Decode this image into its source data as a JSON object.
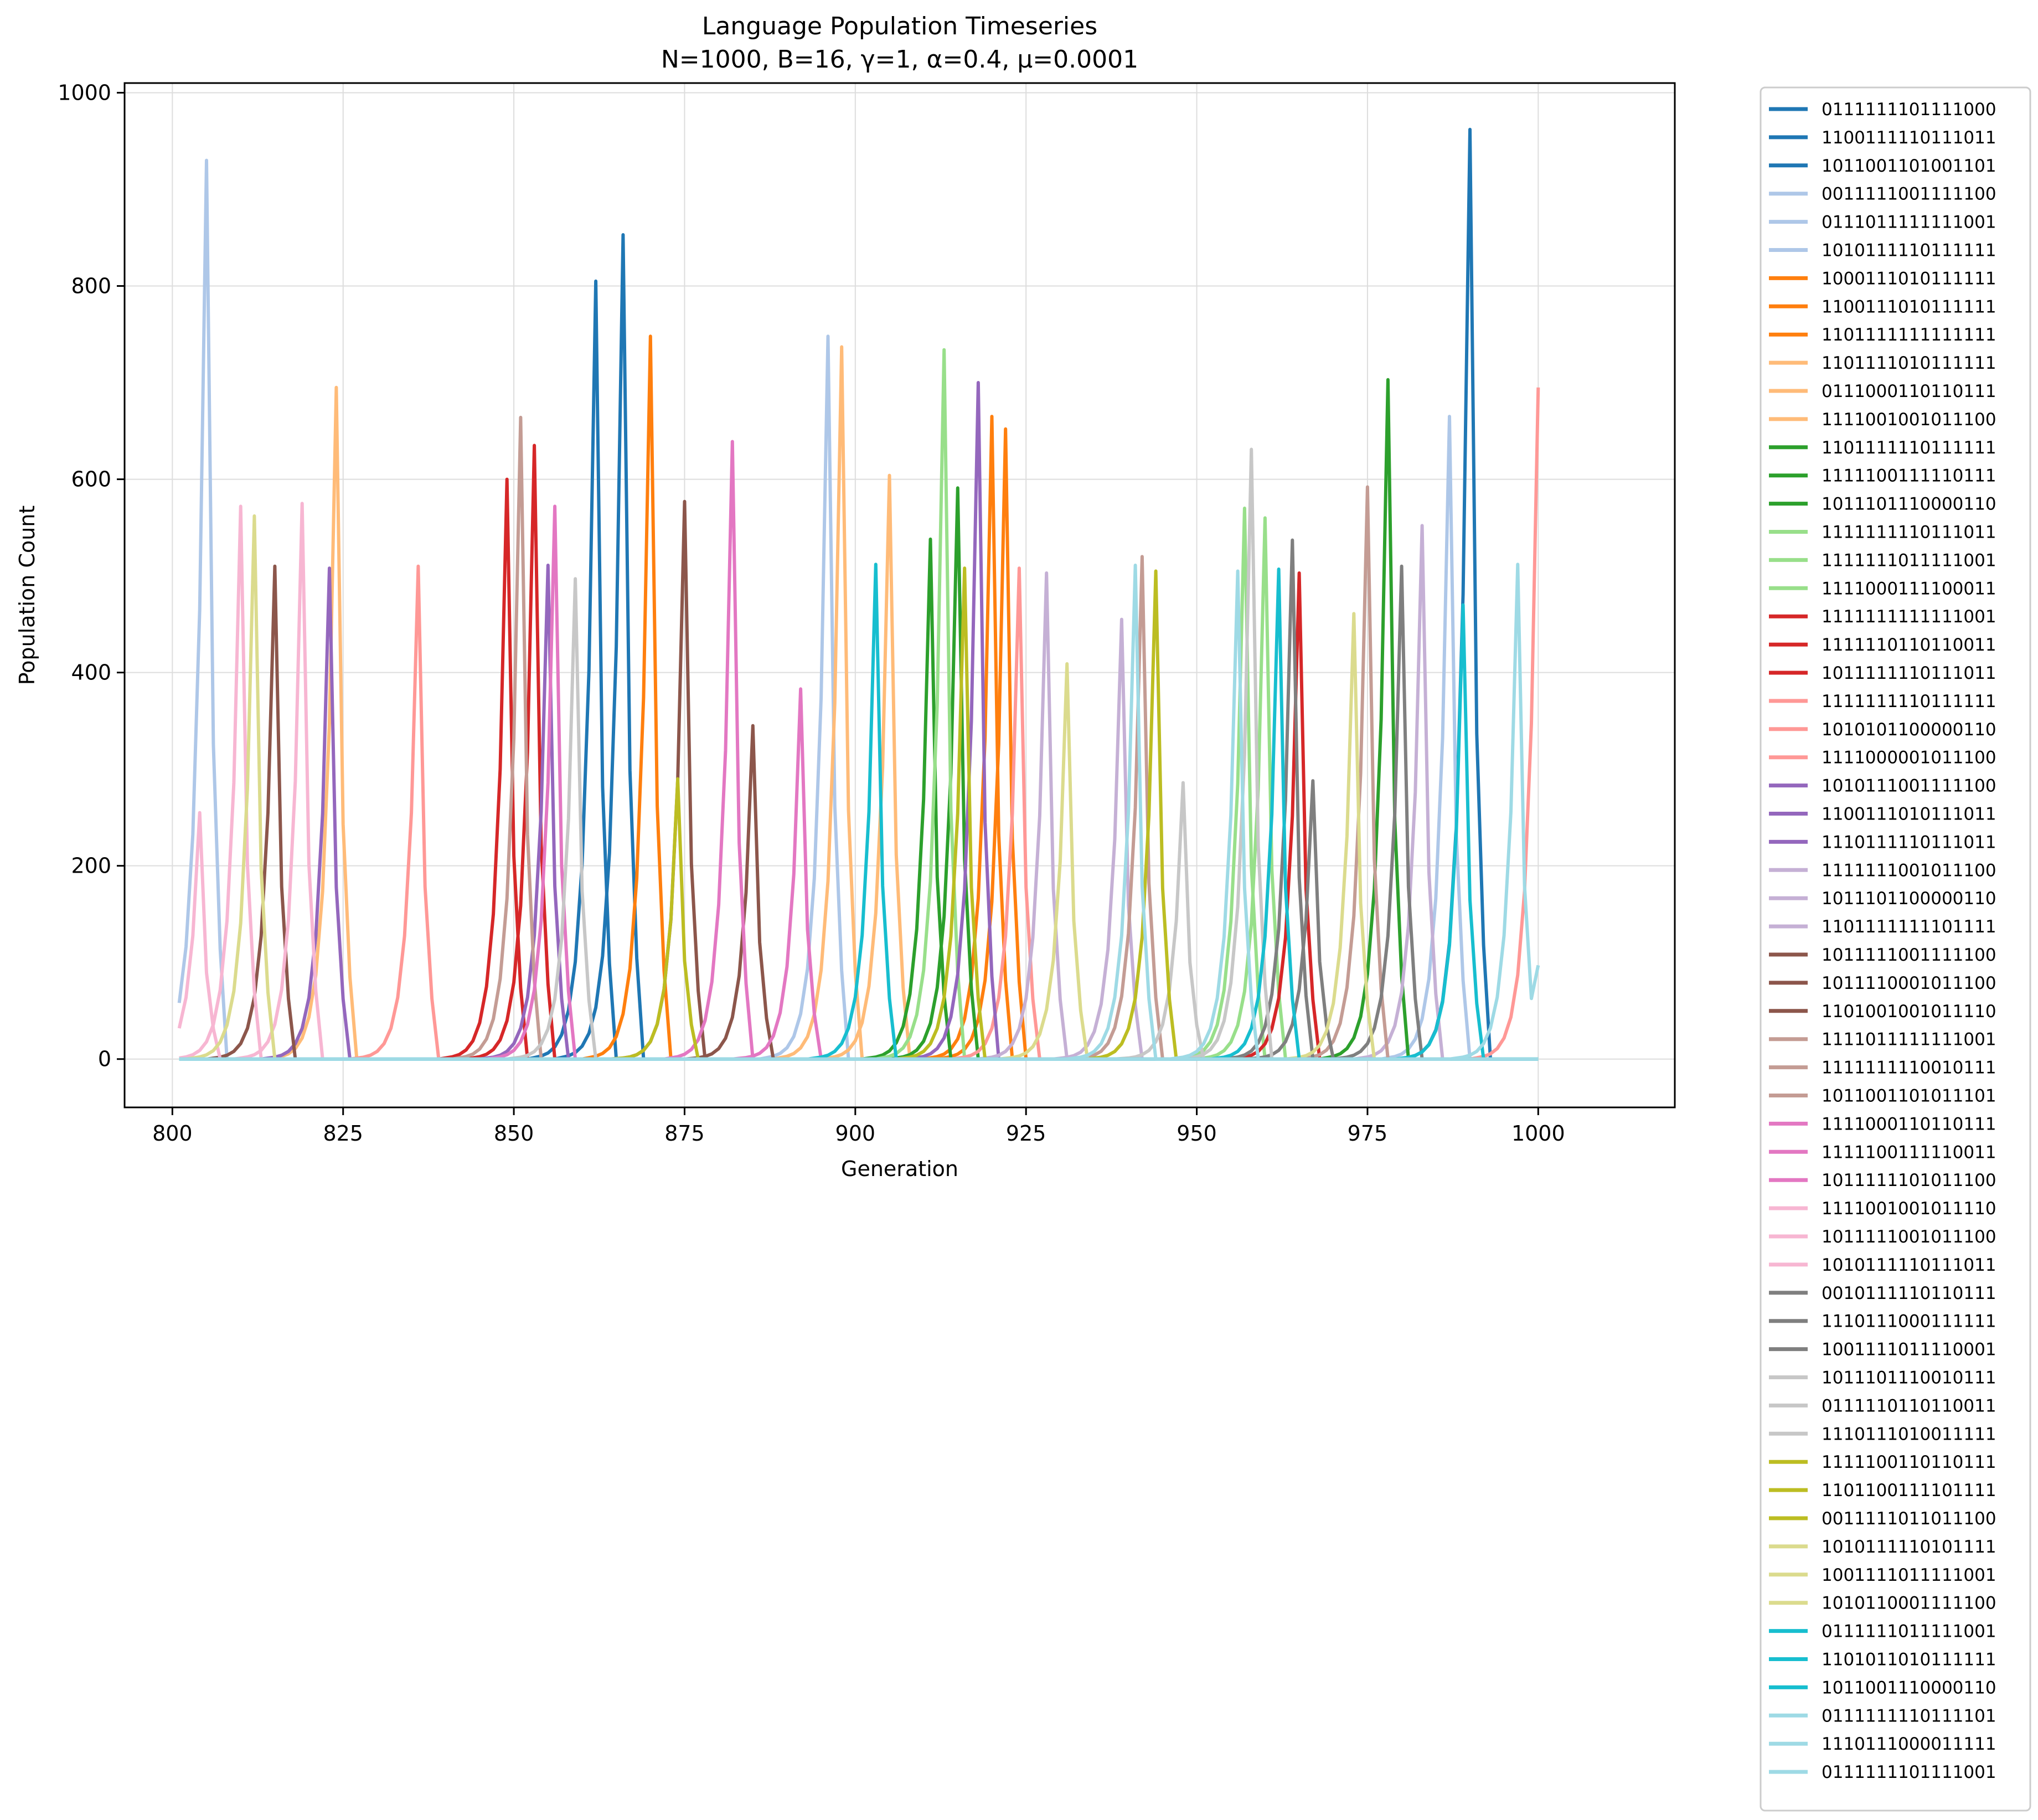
{
  "chart_data": {
    "type": "line",
    "title": "Language Population Timeseries",
    "subtitle": "N=1000, B=16, γ=1, α=0.4, μ=0.0001",
    "xlabel": "Generation",
    "ylabel": "Population Count",
    "xlim": [
      793,
      1020
    ],
    "ylim": [
      -50,
      1010
    ],
    "xticks": [
      800,
      825,
      850,
      875,
      900,
      925,
      950,
      975,
      1000
    ],
    "yticks": [
      0,
      200,
      400,
      600,
      800,
      1000
    ],
    "grid": true,
    "legend_position": "outside-right",
    "series": [
      {
        "name": "0111111101111000",
        "color": "#1f77b4",
        "peaks": [
          [
            990,
            962
          ]
        ]
      },
      {
        "name": "1100111110111011",
        "color": "#1f77b4",
        "peaks": [
          [
            862,
            805
          ]
        ]
      },
      {
        "name": "1011001101001101",
        "color": "#1f77b4",
        "peaks": [
          [
            866,
            853
          ]
        ]
      },
      {
        "name": "0011111001111100",
        "color": "#aec7e8",
        "peaks": [
          [
            805,
            930
          ]
        ]
      },
      {
        "name": "0111011111111001",
        "color": "#aec7e8",
        "peaks": [
          [
            896,
            748
          ]
        ]
      },
      {
        "name": "1010111110111111",
        "color": "#aec7e8",
        "peaks": [
          [
            987,
            665
          ]
        ]
      },
      {
        "name": "1000111010111111",
        "color": "#ff7f0e",
        "peaks": [
          [
            870,
            748
          ]
        ]
      },
      {
        "name": "1100111010111111",
        "color": "#ff7f0e",
        "peaks": [
          [
            920,
            665
          ]
        ]
      },
      {
        "name": "1101111111111111",
        "color": "#ff7f0e",
        "peaks": [
          [
            922,
            652
          ]
        ]
      },
      {
        "name": "1101111010111111",
        "color": "#ffbb78",
        "peaks": [
          [
            898,
            737
          ]
        ]
      },
      {
        "name": "0111000110110111",
        "color": "#ffbb78",
        "peaks": [
          [
            824,
            695
          ]
        ]
      },
      {
        "name": "1111001001011100",
        "color": "#ffbb78",
        "peaks": [
          [
            905,
            604
          ]
        ]
      },
      {
        "name": "1101111110111111",
        "color": "#2ca02c",
        "peaks": [
          [
            978,
            703
          ]
        ]
      },
      {
        "name": "1111100111110111",
        "color": "#2ca02c",
        "peaks": [
          [
            915,
            591
          ]
        ]
      },
      {
        "name": "1011101110000110",
        "color": "#2ca02c",
        "peaks": [
          [
            911,
            538
          ]
        ]
      },
      {
        "name": "1111111110111011",
        "color": "#98df8a",
        "peaks": [
          [
            913,
            734
          ]
        ]
      },
      {
        "name": "1111111011111001",
        "color": "#98df8a",
        "peaks": [
          [
            960,
            560
          ]
        ]
      },
      {
        "name": "1111000111100011",
        "color": "#98df8a",
        "peaks": [
          [
            957,
            570
          ]
        ]
      },
      {
        "name": "1111111111111001",
        "color": "#d62728",
        "peaks": [
          [
            853,
            635
          ]
        ]
      },
      {
        "name": "1111110110110011",
        "color": "#d62728",
        "peaks": [
          [
            849,
            600
          ]
        ]
      },
      {
        "name": "1011111110111011",
        "color": "#d62728",
        "peaks": [
          [
            965,
            503
          ]
        ]
      },
      {
        "name": "1111111110111111",
        "color": "#ff9896",
        "peaks": [
          [
            1000,
            695
          ]
        ]
      },
      {
        "name": "1010101100000110",
        "color": "#ff9896",
        "peaks": [
          [
            924,
            508
          ]
        ]
      },
      {
        "name": "1111000001011100",
        "color": "#ff9896",
        "peaks": [
          [
            836,
            510
          ]
        ]
      },
      {
        "name": "1010111001111100",
        "color": "#9467bd",
        "peaks": [
          [
            918,
            700
          ]
        ]
      },
      {
        "name": "1100111010111011",
        "color": "#9467bd",
        "peaks": [
          [
            855,
            511
          ]
        ]
      },
      {
        "name": "1110111110111011",
        "color": "#9467bd",
        "peaks": [
          [
            823,
            508
          ]
        ]
      },
      {
        "name": "1111111001011100",
        "color": "#c5b0d5",
        "peaks": [
          [
            939,
            455
          ]
        ]
      },
      {
        "name": "1011101100000110",
        "color": "#c5b0d5",
        "peaks": [
          [
            928,
            503
          ]
        ]
      },
      {
        "name": "1101111111101111",
        "color": "#c5b0d5",
        "peaks": [
          [
            983,
            552
          ]
        ]
      },
      {
        "name": "1011111001111100",
        "color": "#8c564b",
        "peaks": [
          [
            875,
            577
          ]
        ]
      },
      {
        "name": "1011110001011100",
        "color": "#8c564b",
        "peaks": [
          [
            815,
            510
          ]
        ]
      },
      {
        "name": "1101001001011110",
        "color": "#8c564b",
        "peaks": [
          [
            885,
            345
          ]
        ]
      },
      {
        "name": "1111011111111001",
        "color": "#c49c94",
        "peaks": [
          [
            851,
            664
          ]
        ]
      },
      {
        "name": "1111111110010111",
        "color": "#c49c94",
        "peaks": [
          [
            975,
            592
          ]
        ]
      },
      {
        "name": "1011001101011101",
        "color": "#c49c94",
        "peaks": [
          [
            942,
            520
          ]
        ]
      },
      {
        "name": "1111000110110111",
        "color": "#e377c2",
        "peaks": [
          [
            882,
            639
          ]
        ]
      },
      {
        "name": "1111100111110011",
        "color": "#e377c2",
        "peaks": [
          [
            856,
            572
          ]
        ]
      },
      {
        "name": "1011111101011100",
        "color": "#e377c2",
        "peaks": [
          [
            892,
            383
          ]
        ]
      },
      {
        "name": "1111001001011110",
        "color": "#f7b6d2",
        "peaks": [
          [
            819,
            575
          ]
        ]
      },
      {
        "name": "1011111001011100",
        "color": "#f7b6d2",
        "peaks": [
          [
            810,
            572
          ]
        ]
      },
      {
        "name": "1010111110111011",
        "color": "#f7b6d2",
        "peaks": [
          [
            804,
            255
          ]
        ]
      },
      {
        "name": "0010111110110111",
        "color": "#7f7f7f",
        "peaks": [
          [
            964,
            537
          ]
        ]
      },
      {
        "name": "1110111000111111",
        "color": "#7f7f7f",
        "peaks": [
          [
            980,
            510
          ]
        ]
      },
      {
        "name": "1001111011110001",
        "color": "#7f7f7f",
        "peaks": [
          [
            967,
            288
          ]
        ]
      },
      {
        "name": "1011101110010111",
        "color": "#c7c7c7",
        "peaks": [
          [
            958,
            631
          ]
        ]
      },
      {
        "name": "0111110110110011",
        "color": "#c7c7c7",
        "peaks": [
          [
            859,
            497
          ]
        ]
      },
      {
        "name": "1110111010011111",
        "color": "#c7c7c7",
        "peaks": [
          [
            948,
            286
          ]
        ]
      },
      {
        "name": "1111100110110111",
        "color": "#bcbd22",
        "peaks": [
          [
            944,
            505
          ]
        ]
      },
      {
        "name": "1101100111101111",
        "color": "#bcbd22",
        "peaks": [
          [
            916,
            508
          ]
        ]
      },
      {
        "name": "0011111011011100",
        "color": "#bcbd22",
        "peaks": [
          [
            874,
            290
          ]
        ]
      },
      {
        "name": "1010111110101111",
        "color": "#dbdb8d",
        "peaks": [
          [
            973,
            461
          ]
        ]
      },
      {
        "name": "1001111011111001",
        "color": "#dbdb8d",
        "peaks": [
          [
            812,
            562
          ]
        ]
      },
      {
        "name": "1010110001111100",
        "color": "#dbdb8d",
        "peaks": [
          [
            931,
            409
          ]
        ]
      },
      {
        "name": "0111111011111001",
        "color": "#17becf",
        "peaks": [
          [
            962,
            507
          ]
        ]
      },
      {
        "name": "1101011010111111",
        "color": "#17becf",
        "peaks": [
          [
            903,
            512
          ]
        ]
      },
      {
        "name": "1011001110000110",
        "color": "#17becf",
        "peaks": [
          [
            989,
            470
          ]
        ]
      },
      {
        "name": "0111111110111101",
        "color": "#9edae5",
        "peaks": [
          [
            941,
            511
          ]
        ]
      },
      {
        "name": "1110111000011111",
        "color": "#9edae5",
        "peaks": [
          [
            956,
            505
          ]
        ]
      },
      {
        "name": "0111111101111001",
        "color": "#9edae5",
        "peaks": [
          [
            997,
            512
          ],
          [
            1000,
            97
          ]
        ]
      }
    ]
  }
}
